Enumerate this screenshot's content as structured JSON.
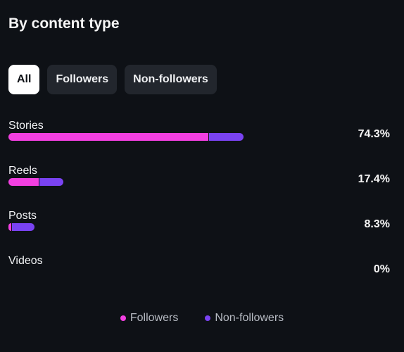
{
  "header": {
    "title": "By content type"
  },
  "tabs": [
    {
      "label": "All",
      "active": true
    },
    {
      "label": "Followers",
      "active": false
    },
    {
      "label": "Non-followers",
      "active": false
    }
  ],
  "rows": [
    {
      "label": "Stories",
      "value": "74.3%",
      "percent": 74.3,
      "followers_share": 0.85
    },
    {
      "label": "Reels",
      "value": "17.4%",
      "percent": 17.4,
      "followers_share": 0.55
    },
    {
      "label": "Posts",
      "value": "8.3%",
      "percent": 8.3,
      "followers_share": 0.12
    },
    {
      "label": "Videos",
      "value": "0%",
      "percent": 0,
      "followers_share": 0
    }
  ],
  "legend": [
    {
      "label": "Followers",
      "color": "#f23fe0"
    },
    {
      "label": "Non-followers",
      "color": "#7a43f2"
    }
  ],
  "colors": {
    "followers": "#f23fe0",
    "non_followers": "#7a43f2",
    "background": "#0e1116"
  }
}
